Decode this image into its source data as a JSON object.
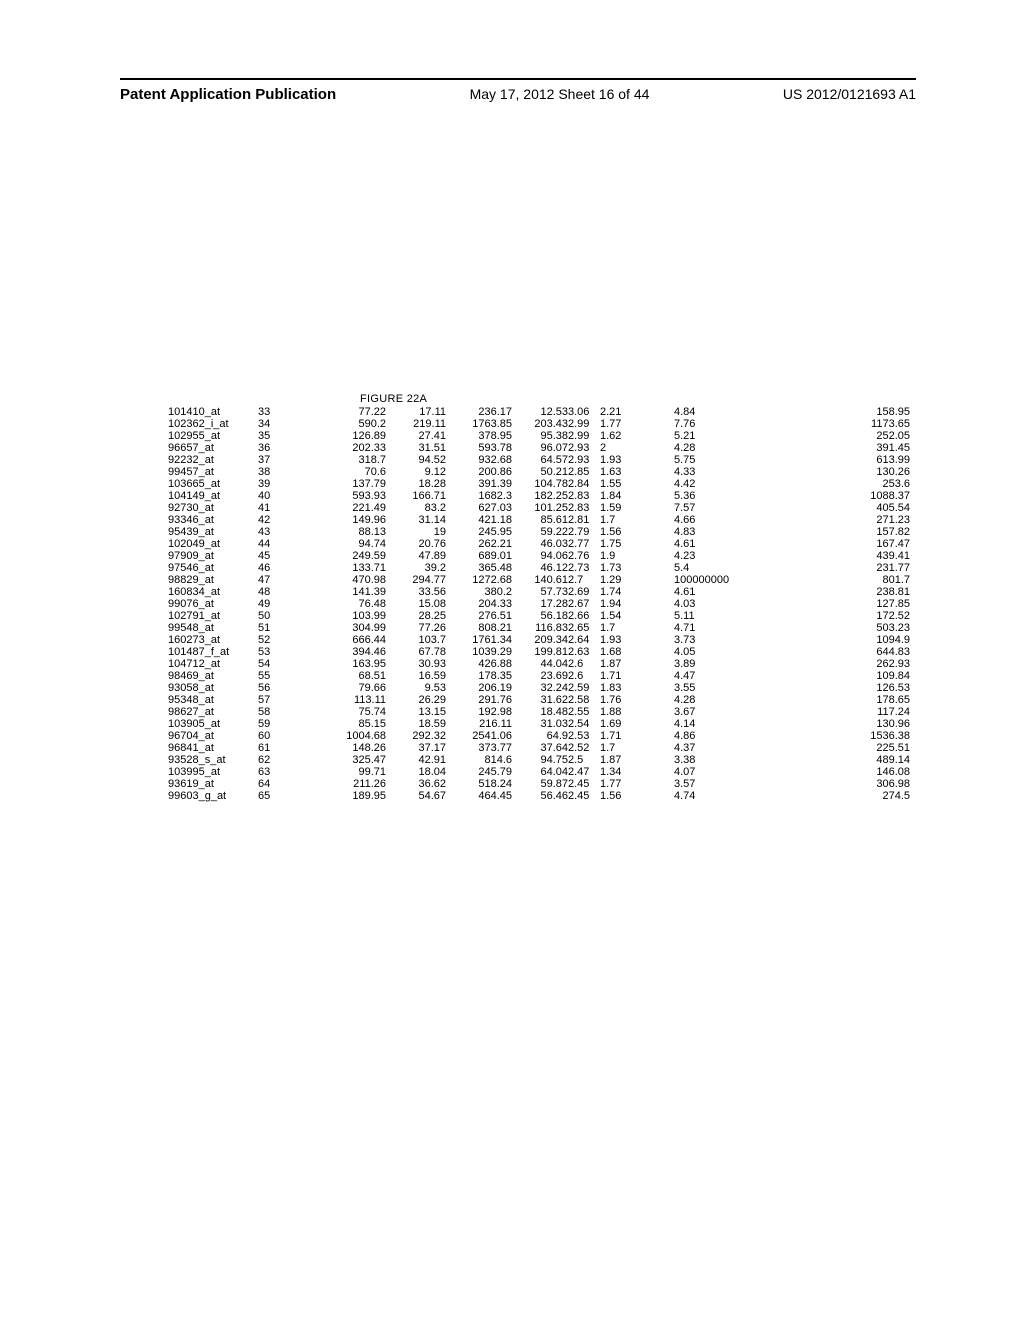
{
  "header": {
    "left": "Patent Application Publication",
    "center": "May 17, 2012  Sheet 16 of 44",
    "right": "US 2012/0121693 A1"
  },
  "figure_title": "FIGURE 22A",
  "table": {
    "rows": [
      [
        "101410_at",
        "33",
        "77.22",
        "17.11",
        "236.17",
        "12.53",
        "3.06",
        "2.21",
        "4.84",
        "158.95"
      ],
      [
        "102362_i_at",
        "34",
        "590.2",
        "219.11",
        "1763.85",
        "203.43",
        "2.99",
        "1.77",
        "7.76",
        "1173.65"
      ],
      [
        "102955_at",
        "35",
        "126.89",
        "27.41",
        "378.95",
        "95.38",
        "2.99",
        "1.62",
        "5.21",
        "252.05"
      ],
      [
        "96657_at",
        "36",
        "202.33",
        "31.51",
        "593.78",
        "96.07",
        "2.93",
        "2",
        "4.28",
        "391.45"
      ],
      [
        "92232_at",
        "37",
        "318.7",
        "94.52",
        "932.68",
        "64.57",
        "2.93",
        "1.93",
        "5.75",
        "613.99"
      ],
      [
        "99457_at",
        "38",
        "70.6",
        "9.12",
        "200.86",
        "50.21",
        "2.85",
        "1.63",
        "4.33",
        "130.26"
      ],
      [
        "103665_at",
        "39",
        "137.79",
        "18.28",
        "391.39",
        "104.78",
        "2.84",
        "1.55",
        "4.42",
        "253.6"
      ],
      [
        "104149_at",
        "40",
        "593.93",
        "166.71",
        "1682.3",
        "182.25",
        "2.83",
        "1.84",
        "5.36",
        "1088.37"
      ],
      [
        "92730_at",
        "41",
        "221.49",
        "83.2",
        "627.03",
        "101.25",
        "2.83",
        "1.59",
        "7.57",
        "405.54"
      ],
      [
        "93346_at",
        "42",
        "149.96",
        "31.14",
        "421.18",
        "85.61",
        "2.81",
        "1.7",
        "4.66",
        "271.23"
      ],
      [
        "95439_at",
        "43",
        "88.13",
        "19",
        "245.95",
        "59.22",
        "2.79",
        "1.56",
        "4.83",
        "157.82"
      ],
      [
        "102049_at",
        "44",
        "94.74",
        "20.76",
        "262.21",
        "46.03",
        "2.77",
        "1.75",
        "4.61",
        "167.47"
      ],
      [
        "97909_at",
        "45",
        "249.59",
        "47.89",
        "689.01",
        "94.06",
        "2.76",
        "1.9",
        "4.23",
        "439.41"
      ],
      [
        "97546_at",
        "46",
        "133.71",
        "39.2",
        "365.48",
        "46.12",
        "2.73",
        "1.73",
        "5.4",
        "231.77"
      ],
      [
        "98829_at",
        "47",
        "470.98",
        "294.77",
        "1272.68",
        "140.61",
        "2.7",
        "1.29",
        "100000000",
        "801.7"
      ],
      [
        "160834_at",
        "48",
        "141.39",
        "33.56",
        "380.2",
        "57.73",
        "2.69",
        "1.74",
        "4.61",
        "238.81"
      ],
      [
        "99076_at",
        "49",
        "76.48",
        "15.08",
        "204.33",
        "17.28",
        "2.67",
        "1.94",
        "4.03",
        "127.85"
      ],
      [
        "102791_at",
        "50",
        "103.99",
        "28.25",
        "276.51",
        "56.18",
        "2.66",
        "1.54",
        "5.11",
        "172.52"
      ],
      [
        "99548_at",
        "51",
        "304.99",
        "77.26",
        "808.21",
        "116.83",
        "2.65",
        "1.7",
        "4.71",
        "503.23"
      ],
      [
        "160273_at",
        "52",
        "666.44",
        "103.7",
        "1761.34",
        "209.34",
        "2.64",
        "1.93",
        "3.73",
        "1094.9"
      ],
      [
        "101487_f_at",
        "53",
        "394.46",
        "67.78",
        "1039.29",
        "199.81",
        "2.63",
        "1.68",
        "4.05",
        "644.83"
      ],
      [
        "104712_at",
        "54",
        "163.95",
        "30.93",
        "426.88",
        "44.04",
        "2.6",
        "1.87",
        "3.89",
        "262.93"
      ],
      [
        "98469_at",
        "55",
        "68.51",
        "16.59",
        "178.35",
        "23.69",
        "2.6",
        "1.71",
        "4.47",
        "109.84"
      ],
      [
        "93058_at",
        "56",
        "79.66",
        "9.53",
        "206.19",
        "32.24",
        "2.59",
        "1.83",
        "3.55",
        "126.53"
      ],
      [
        "95348_at",
        "57",
        "113.11",
        "26.29",
        "291.76",
        "31.62",
        "2.58",
        "1.76",
        "4.28",
        "178.65"
      ],
      [
        "98627_at",
        "58",
        "75.74",
        "13.15",
        "192.98",
        "18.48",
        "2.55",
        "1.88",
        "3.67",
        "117.24"
      ],
      [
        "103905_at",
        "59",
        "85.15",
        "18.59",
        "216.11",
        "31.03",
        "2.54",
        "1.69",
        "4.14",
        "130.96"
      ],
      [
        "96704_at",
        "60",
        "1004.68",
        "292.32",
        "2541.06",
        "64.9",
        "2.53",
        "1.71",
        "4.86",
        "1536.38"
      ],
      [
        "96841_at",
        "61",
        "148.26",
        "37.17",
        "373.77",
        "37.64",
        "2.52",
        "1.7",
        "4.37",
        "225.51"
      ],
      [
        "93528_s_at",
        "62",
        "325.47",
        "42.91",
        "814.6",
        "94.75",
        "2.5",
        "1.87",
        "3.38",
        "489.14"
      ],
      [
        "103995_at",
        "63",
        "99.71",
        "18.04",
        "245.79",
        "64.04",
        "2.47",
        "1.34",
        "4.07",
        "146.08"
      ],
      [
        "93619_at",
        "64",
        "211.26",
        "36.62",
        "518.24",
        "59.87",
        "2.45",
        "1.77",
        "3.57",
        "306.98"
      ],
      [
        "99603_g_at",
        "65",
        "189.95",
        "54.67",
        "464.45",
        "56.46",
        "2.45",
        "1.56",
        "4.74",
        "274.5"
      ]
    ]
  }
}
